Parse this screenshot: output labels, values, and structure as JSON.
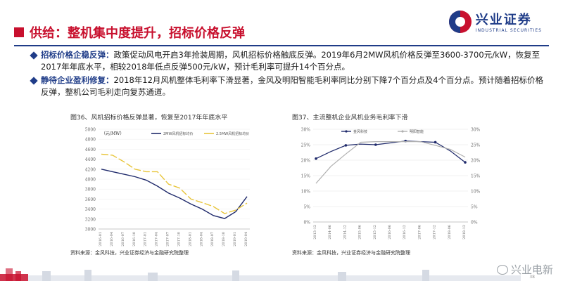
{
  "header": {
    "title": "供给：整机集中度提升，招标价格反弹",
    "logo_cn": "兴业证券",
    "logo_en": "INDUSTRIAL SECURITIES"
  },
  "bullets": [
    {
      "head": "招标价格企稳反弹：",
      "text": "政策促动风电开启3年抢装周期，风机招标价格触底反弹。2019年6月2MW风机价格反弹至3600-3700元/kW，恢复至2017年年底水平，相较2018年低点反弹500元/kW，预计毛利率可提升14个百分点。"
    },
    {
      "head": "静待企业盈利修复：",
      "text": "2018年12月风机整体毛利率下滑显著，金风及明阳智能毛利率同比分别下降7个百分点及4个百分点。预计随着招标价格反弹，整机公司毛利走向复苏通道。"
    }
  ],
  "charts": {
    "chart1_title": "图36、风机招标价格反弹显著，恢复至2017年年底水平",
    "chart2_title": "图37、主流整机企业风机业务毛利率下滑",
    "source1": "资料来源：金风科技，兴业证券经济与金融研究院整理",
    "source2": "资料来源：金风科技，兴业证券经济与金融研究院整理"
  },
  "footer": {
    "wechat": "兴业电新",
    "page": "38"
  },
  "colors": {
    "brand_red": "#c8102e",
    "brand_blue": "#1f3c88",
    "series_navy": "#1f2a6b",
    "series_gold": "#e8c53a",
    "series_gray": "#b0b0b0"
  },
  "chart_data": [
    {
      "type": "line",
      "title": "",
      "ylabel": "（元/MW）",
      "ylim": [
        3000,
        5000
      ],
      "yticks": [
        "5000",
        "4800",
        "4600",
        "4400",
        "4200",
        "4000",
        "3800",
        "3600",
        "3400",
        "3200",
        "3000"
      ],
      "categories": [
        "2016-01",
        "2016-04",
        "2016-07",
        "2016-10",
        "2017-01",
        "2017-04",
        "2017-07",
        "2017-10",
        "2018-01",
        "2018-04",
        "2018-07",
        "2018-10",
        "2019-01",
        "2019-04"
      ],
      "series": [
        {
          "name": "2MW风机招标均价",
          "values": [
            4200,
            4150,
            4100,
            4050,
            3980,
            3860,
            3720,
            3620,
            3500,
            3400,
            3270,
            3210,
            3350,
            3650
          ]
        },
        {
          "name": "2.5MW风机招标均价",
          "values": [
            4500,
            4480,
            4350,
            4200,
            4150,
            4150,
            3900,
            3820,
            3600,
            3530,
            3450,
            3310,
            3380,
            3520
          ]
        }
      ]
    },
    {
      "type": "line",
      "title": "",
      "ylim": [
        0,
        30
      ],
      "yticks_left": [
        "30%",
        "25%",
        "20%",
        "15%",
        "10%",
        "5%",
        "0%"
      ],
      "yticks_right": [
        "30%",
        "25%",
        "20%",
        "15%",
        "10%",
        "5%",
        "0%"
      ],
      "categories": [
        "2013-12",
        "2014-06",
        "2014-12",
        "2015-06",
        "2015-12",
        "2016-06",
        "2016-12",
        "2017-06",
        "2017-12",
        "2018-06",
        "2018-12"
      ],
      "series": [
        {
          "name": "金风科技",
          "values": [
            20.5,
            22.8,
            24.8,
            25.2,
            25.0,
            25.6,
            26.2,
            26.0,
            25.8,
            23.0,
            19.3
          ]
        },
        {
          "name": "明阳智能",
          "values": [
            12.5,
            18.0,
            22.0,
            25.8,
            26.0,
            26.0,
            26.0,
            26.0,
            24.8,
            23.5,
            21.0
          ]
        }
      ]
    }
  ]
}
